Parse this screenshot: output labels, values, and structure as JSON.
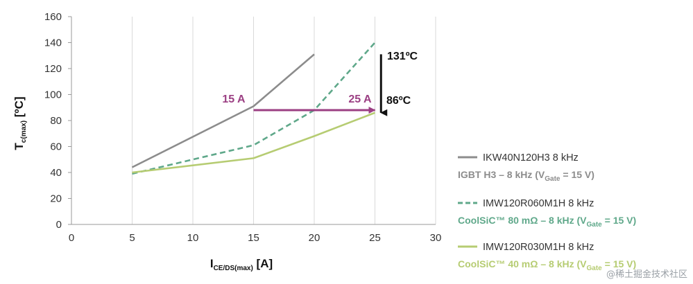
{
  "chart_data": {
    "type": "line",
    "ylabel": {
      "main": "T",
      "sub": "c(max)",
      "unit": " [ºC]"
    },
    "xlabel": {
      "main": "I",
      "sub": "CE/DS(max)",
      "unit": " [A]"
    },
    "xlim": [
      0,
      30
    ],
    "ylim": [
      0,
      160
    ],
    "x_ticks": [
      0,
      5,
      10,
      15,
      20,
      25,
      30
    ],
    "y_ticks": [
      0,
      20,
      40,
      60,
      80,
      100,
      120,
      140,
      160
    ],
    "grid": "vertical",
    "legend_position": "right",
    "series": [
      {
        "name": "IKW40N120H3 8 kHz",
        "subtitle": {
          "pre": "IGBT H3 – 8 kHz (V",
          "sub": "Gate",
          "post": " = 15 V)"
        },
        "color": "#8c8c8c",
        "dash": "solid",
        "x": [
          5,
          15,
          20
        ],
        "y": [
          44,
          91,
          131
        ]
      },
      {
        "name": "IMW120R060M1H 8 kHz",
        "subtitle": {
          "pre": "CoolSiC™ 80 mΩ – 8 kHz (V",
          "sub": "Gate",
          "post": " = 15 V)"
        },
        "color": "#5fa88a",
        "dash": "dashed",
        "x": [
          5,
          15,
          20,
          25
        ],
        "y": [
          39,
          61,
          88,
          140
        ]
      },
      {
        "name": "IMW120R030M1H 8 kHz",
        "subtitle": {
          "pre": "CoolSiC™ 40 mΩ – 8 kHz (V",
          "sub": "Gate",
          "post": " = 15 V)"
        },
        "color": "#b6cc72",
        "dash": "solid",
        "x": [
          5,
          15,
          20,
          25
        ],
        "y": [
          40,
          51,
          68,
          86
        ]
      }
    ],
    "annotations": {
      "label_15a": "15 A",
      "label_25a": "25 A",
      "label_131": "131ºC",
      "label_86": "86ºC",
      "current_arrow": {
        "x_from": 15,
        "x_to": 25,
        "y": 88,
        "color": "#9b3f83"
      },
      "temp_arrow": {
        "x": 25.5,
        "y_from": 131,
        "y_to": 86,
        "color": "#111111"
      }
    }
  },
  "watermark": "@稀土掘金技术社区"
}
